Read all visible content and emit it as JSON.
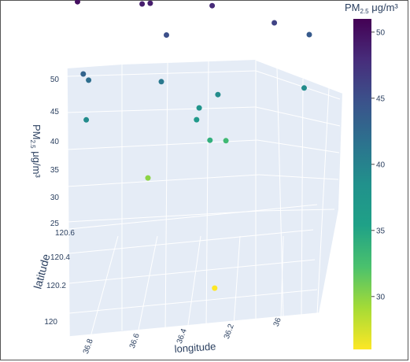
{
  "chart_data": {
    "type": "scatter",
    "subtype": "scatter3d",
    "xlabel": "longitude",
    "ylabel": "latitude",
    "zlabel": "PM2.5 μg/m³",
    "x_ticks": [
      "36.8",
      "36.6",
      "36.4",
      "36.2",
      "36"
    ],
    "y_ticks": [
      "120",
      "120.2",
      "120.4",
      "120.6"
    ],
    "z_ticks": [
      "25",
      "30",
      "35",
      "40",
      "45",
      "50"
    ],
    "colorbar": {
      "title_main": "PM",
      "title_sub": "2.5",
      "title_unit": " μg/m³",
      "colorscale": "viridis",
      "range": [
        26,
        51
      ],
      "ticks": [
        "30",
        "35",
        "40",
        "45",
        "50"
      ]
    },
    "grid": true,
    "points": [
      {
        "longitude": 36.86,
        "latitude": 120.63,
        "pm25": 50
      },
      {
        "longitude": 36.62,
        "latitude": 120.63,
        "pm25": 49
      },
      {
        "longitude": 36.59,
        "latitude": 120.63,
        "pm25": 49
      },
      {
        "longitude": 36.38,
        "latitude": 120.63,
        "pm25": 50
      },
      {
        "longitude": 36.36,
        "latitude": 120.63,
        "pm25": 48
      },
      {
        "longitude": 36.53,
        "latitude": 120.63,
        "pm25": 45
      },
      {
        "longitude": 36.84,
        "latitude": 120.54,
        "pm25": 43
      },
      {
        "longitude": 36.82,
        "latitude": 120.55,
        "pm25": 42
      },
      {
        "longitude": 36.83,
        "latitude": 120.46,
        "pm25": 39
      },
      {
        "longitude": 36.55,
        "latitude": 120.55,
        "pm25": 41
      },
      {
        "longitude": 36.13,
        "latitude": 120.59,
        "pm25": 46
      },
      {
        "longitude": 36.0,
        "latitude": 120.6,
        "pm25": 44
      },
      {
        "longitude": 36.02,
        "latitude": 120.53,
        "pm25": 39
      },
      {
        "longitude": 36.41,
        "latitude": 120.52,
        "pm25": 38
      },
      {
        "longitude": 36.34,
        "latitude": 120.54,
        "pm25": 39
      },
      {
        "longitude": 36.6,
        "latitude": 120.53,
        "pm25": 30
      },
      {
        "longitude": 36.37,
        "latitude": 120.52,
        "pm25": 34
      },
      {
        "longitude": 36.31,
        "latitude": 120.56,
        "pm25": 33
      },
      {
        "longitude": 36.42,
        "latitude": 120.5,
        "pm25": 37
      },
      {
        "longitude": 36.36,
        "latitude": 120.01,
        "pm25": 26
      }
    ]
  }
}
